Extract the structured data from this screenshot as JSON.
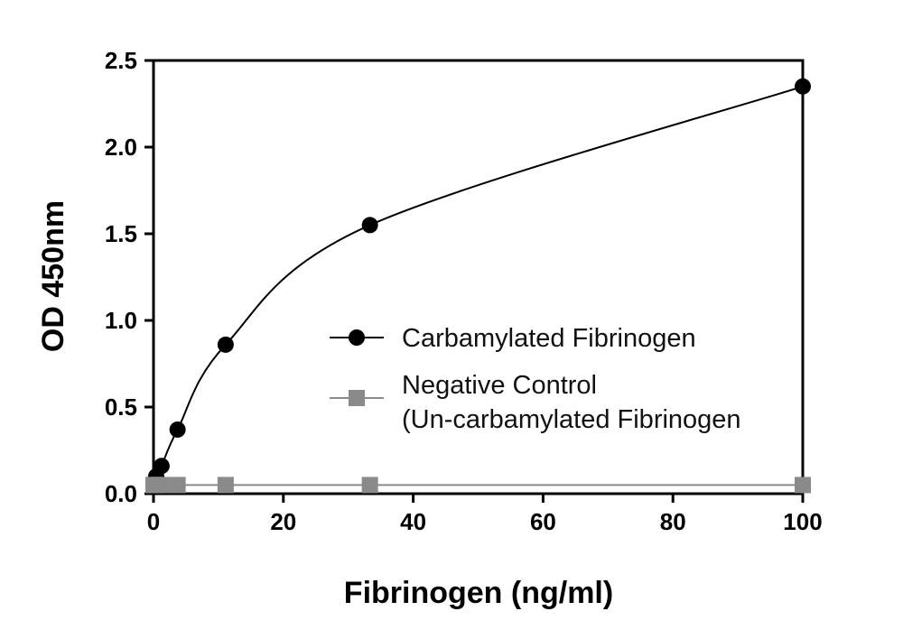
{
  "chart_data": {
    "type": "scatter",
    "title": "",
    "xlabel": "Fibrinogen (ng/ml)",
    "ylabel": "OD 450nm",
    "xlim": [
      0,
      100
    ],
    "ylim": [
      0,
      2.5
    ],
    "xticks": [
      "0",
      "20",
      "40",
      "60",
      "80",
      "100"
    ],
    "yticks": [
      "0.0",
      "0.5",
      "1.0",
      "1.5",
      "2.0",
      "2.5"
    ],
    "grid": false,
    "legend_position": "center-right",
    "series": [
      {
        "name": "Carbamylated Fibrinogen",
        "marker": "circle",
        "color": "#000000",
        "fit": "saturation-curve",
        "x": [
          0,
          0.137,
          0.412,
          1.235,
          3.704,
          11.11,
          33.33,
          100
        ],
        "y": [
          0.05,
          0.07,
          0.1,
          0.16,
          0.37,
          0.86,
          1.55,
          2.35
        ]
      },
      {
        "name": "Negative Control\n(Un-carbamylated Fibrinogen",
        "marker": "square",
        "color": "#8a8a8a",
        "x": [
          0,
          0.137,
          0.412,
          1.235,
          3.704,
          11.11,
          33.33,
          100
        ],
        "y": [
          0.05,
          0.05,
          0.05,
          0.05,
          0.05,
          0.05,
          0.05,
          0.05
        ]
      }
    ]
  }
}
